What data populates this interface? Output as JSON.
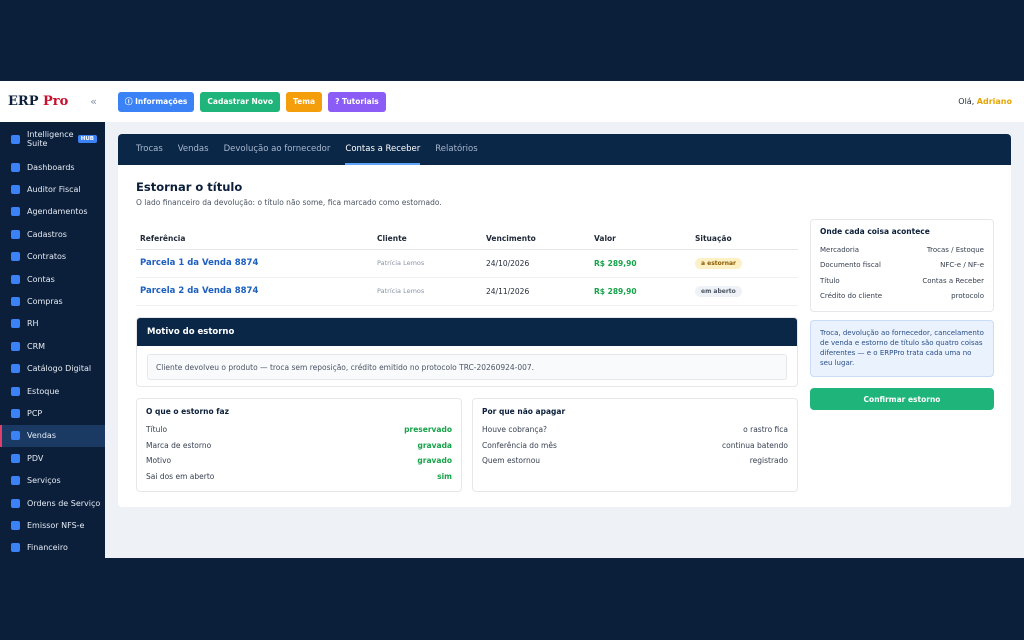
{
  "sidebar": {
    "logo": "ERP",
    "logo_accent": "Pro",
    "collapse": "«",
    "items": [
      {
        "label": "Intelligence Suite",
        "badge": "HUB"
      },
      {
        "label": "Dashboards"
      },
      {
        "label": "Auditor Fiscal"
      },
      {
        "label": "Agendamentos"
      },
      {
        "label": "Cadastros"
      },
      {
        "label": "Contratos"
      },
      {
        "label": "Contas"
      },
      {
        "label": "Compras"
      },
      {
        "label": "RH"
      },
      {
        "label": "CRM"
      },
      {
        "label": "Catálogo Digital"
      },
      {
        "label": "Estoque"
      },
      {
        "label": "PCP"
      },
      {
        "label": "Vendas"
      },
      {
        "label": "PDV"
      },
      {
        "label": "Serviços"
      },
      {
        "label": "Ordens de Serviço"
      },
      {
        "label": "Emissor NFS-e"
      },
      {
        "label": "Financeiro"
      }
    ]
  },
  "topbar": {
    "buttons": [
      "ⓘ Informações",
      "Cadastrar Novo",
      "Tema",
      "? Tutoriais"
    ],
    "greeting": "Olá,",
    "user": "Adriano"
  },
  "tabs": [
    "Trocas",
    "Vendas",
    "Devolução ao fornecedor",
    "Contas a Receber",
    "Relatórios"
  ],
  "page": {
    "title": "Estornar o título",
    "subtitle": "O lado financeiro da devolução: o título não some, fica marcado como estornado."
  },
  "table": {
    "headers": [
      "Referência",
      "Cliente",
      "Vencimento",
      "Valor",
      "Situação"
    ],
    "rows": [
      [
        "Parcela 1 da Venda 8874",
        "Patrícia Lemos",
        "24/10/2026",
        "R$ 289,90",
        "a estornar"
      ],
      [
        "Parcela 2 da Venda 8874",
        "Patrícia Lemos",
        "24/11/2026",
        "R$ 289,90",
        "em aberto"
      ]
    ]
  },
  "reason": {
    "title": "Motivo do estorno",
    "text": "Cliente devolveu o produto — troca sem reposição, crédito emitido no protocolo TRC-20260924-007."
  },
  "effects": {
    "title": "O que o estorno faz",
    "rows": [
      [
        "Título",
        "preservado"
      ],
      [
        "Marca de estorno",
        "gravada"
      ],
      [
        "Motivo",
        "gravado"
      ],
      [
        "Sai dos em aberto",
        "sim"
      ]
    ]
  },
  "why": {
    "title": "Por que não apagar",
    "rows": [
      [
        "Houve cobrança?",
        "o rastro fica"
      ],
      [
        "Conferência do mês",
        "continua batendo"
      ],
      [
        "Quem estornou",
        "registrado"
      ]
    ]
  },
  "side": {
    "title": "Onde cada coisa acontece",
    "rows": [
      [
        "Mercadoria",
        "Trocas / Estoque"
      ],
      [
        "Documento fiscal",
        "NFC-e / NF-e"
      ],
      [
        "Título",
        "Contas a Receber"
      ],
      [
        "Crédito do cliente",
        "protocolo"
      ]
    ],
    "note": "Troca, devolução ao fornecedor, cancelamento de venda e estorno de título são quatro coisas diferentes — e o ERPPro trata cada uma no seu lugar.",
    "button": "Confirmar estorno"
  }
}
